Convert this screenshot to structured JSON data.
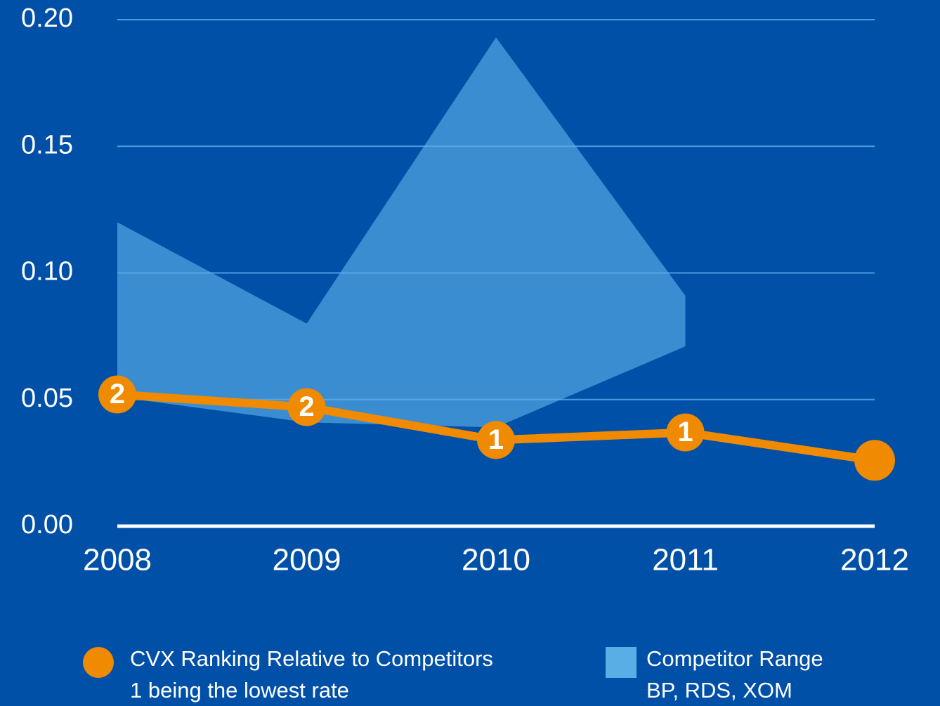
{
  "chart_data": {
    "type": "line",
    "categories": [
      "2008",
      "2009",
      "2010",
      "2011",
      "2012"
    ],
    "ylim": [
      0,
      0.2
    ],
    "yticks": [
      {
        "value": 0,
        "label": "0.00"
      },
      {
        "value": 0.05,
        "label": "0.05"
      },
      {
        "value": 0.1,
        "label": "0.10"
      },
      {
        "value": 0.15,
        "label": "0.15"
      },
      {
        "value": 0.2,
        "label": "0.20"
      }
    ],
    "grid": true,
    "range": {
      "name": "Competitor Range",
      "note": "BP, RDS, XOM",
      "color": "#5aaee6",
      "high": [
        0.12,
        0.08,
        0.193,
        0.091,
        null
      ],
      "low": [
        0.051,
        0.041,
        0.039,
        0.071,
        null
      ]
    },
    "series": [
      {
        "name": "CVX Ranking Relative to Competitors",
        "note": "1 being the lowest rate",
        "color": "#f08a00",
        "values": [
          0.052,
          0.047,
          0.034,
          0.037,
          0.026
        ],
        "rank_labels": [
          "2",
          "2",
          "1",
          "1",
          null
        ]
      }
    ]
  }
}
